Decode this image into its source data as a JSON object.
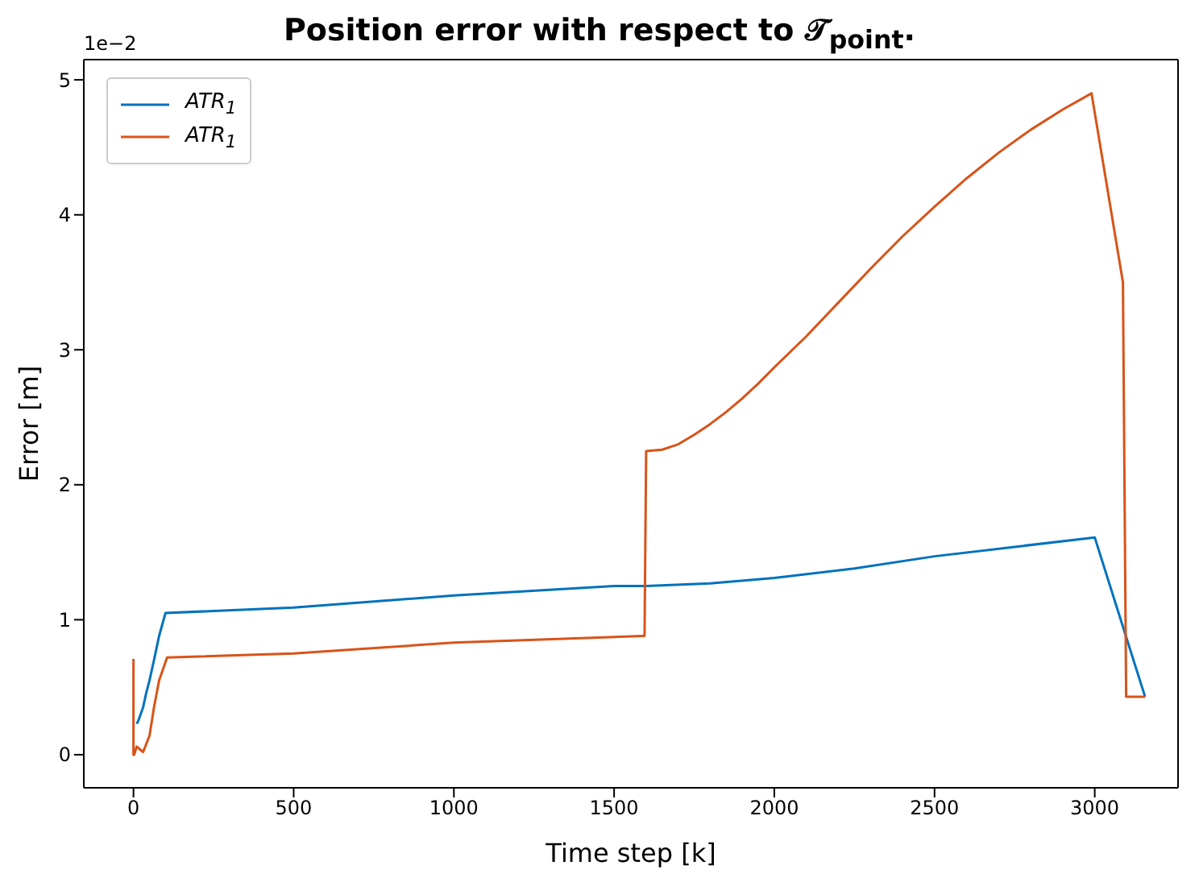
{
  "chart_data": {
    "type": "line",
    "title": "Position error with respect to 𝒯$_{point}$.",
    "xlabel": "Time step [k]",
    "ylabel": "Error [m]",
    "annotations": [
      "1e−2"
    ],
    "xlim": [
      -155,
      3260
    ],
    "ylim": [
      -0.245,
      5.15
    ],
    "xticks": [
      0,
      500,
      1000,
      1500,
      2000,
      2500,
      3000
    ],
    "yticks": [
      0,
      1,
      2,
      3,
      4,
      5
    ],
    "grid": false,
    "legend": "top left",
    "marker": "none",
    "line_style": "solid",
    "series": [
      {
        "name": "ATR$_{1}$",
        "color": "#0072bd",
        "x": [
          10,
          15,
          30,
          40,
          50,
          64,
          80,
          100,
          500,
          1000,
          1500,
          1600,
          1800,
          2000,
          2250,
          2500,
          2750,
          3000,
          3157
        ],
        "values": [
          0.23,
          0.25,
          0.35,
          0.46,
          0.55,
          0.7,
          0.88,
          1.05,
          1.09,
          1.18,
          1.25,
          1.25,
          1.27,
          1.31,
          1.38,
          1.47,
          1.54,
          1.61,
          0.43
        ]
      },
      {
        "name": "ATR$_{1}$",
        "color": "#d95319",
        "x": [
          0,
          0,
          2,
          10,
          20,
          30,
          40,
          50,
          64,
          80,
          105,
          500,
          1000,
          1590,
          1595,
          1600,
          1650,
          1700,
          1750,
          1800,
          1850,
          1900,
          1950,
          2000,
          2100,
          2200,
          2300,
          2400,
          2500,
          2600,
          2700,
          2800,
          2900,
          2990,
          3088,
          3098,
          3108,
          3157
        ],
        "values": [
          0.71,
          0,
          0,
          0.06,
          0.04,
          0.02,
          0.08,
          0.14,
          0.35,
          0.55,
          0.72,
          0.75,
          0.83,
          0.88,
          0.88,
          2.25,
          2.26,
          2.3,
          2.37,
          2.45,
          2.54,
          2.64,
          2.75,
          2.87,
          3.1,
          3.35,
          3.6,
          3.84,
          4.06,
          4.27,
          4.46,
          4.63,
          4.78,
          4.9,
          3.5,
          0.43,
          0.43,
          0.43
        ]
      }
    ]
  }
}
